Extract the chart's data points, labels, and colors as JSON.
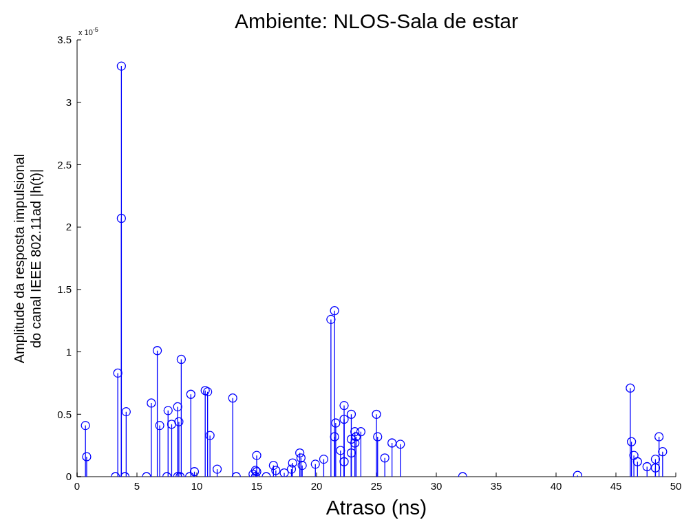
{
  "chart_data": {
    "type": "lollipop",
    "title": "Ambiente: NLOS-Sala de estar",
    "xlabel": "Atraso (ns)",
    "ylabel": "Amplitude da resposta impulsional\ndo canal IEEE 802.11ad |h(t)|",
    "annotations": [
      "x 10$^{-5}$"
    ],
    "color": "#0000ff",
    "marker": "circle",
    "x": [
      0.7,
      0.8,
      3.2,
      3.4,
      3.7,
      3.7,
      4.0,
      4.1,
      5.8,
      6.2,
      6.7,
      6.9,
      7.5,
      7.6,
      7.9,
      8.4,
      8.4,
      8.5,
      8.6,
      8.7,
      9.4,
      9.5,
      9.8,
      10.7,
      10.9,
      11.1,
      11.7,
      13.0,
      13.3,
      14.7,
      14.9,
      14.9,
      15.0,
      15.0,
      15.8,
      16.4,
      16.6,
      17.3,
      17.9,
      18.0,
      18.6,
      18.7,
      18.8,
      19.9,
      20.6,
      21.2,
      21.5,
      21.5,
      21.6,
      22.0,
      22.3,
      22.3,
      22.3,
      22.9,
      22.9,
      22.9,
      23.2,
      23.2,
      23.3,
      23.7,
      25.0,
      25.1,
      25.7,
      26.3,
      27.0,
      32.2,
      41.8,
      46.2,
      46.3,
      46.5,
      46.8,
      47.6,
      48.3,
      48.3,
      48.6,
      48.9
    ],
    "values": [
      0.41,
      0.16,
      0,
      0.83,
      3.29,
      2.07,
      0,
      0.52,
      0,
      0.59,
      1.01,
      0.41,
      0,
      0.53,
      0.42,
      0,
      0.56,
      0.44,
      0,
      0.94,
      0,
      0.66,
      0.04,
      0.69,
      0.68,
      0.33,
      0.06,
      0.63,
      0,
      0.02,
      0.05,
      0,
      0.17,
      0.04,
      0,
      0.09,
      0.05,
      0.03,
      0.06,
      0.11,
      0.19,
      0.15,
      0.09,
      0.1,
      0.14,
      1.26,
      1.33,
      0.32,
      0.43,
      0.21,
      0.57,
      0.12,
      0.46,
      0.5,
      0.3,
      0.19,
      0.27,
      0.36,
      0.32,
      0.36,
      0.5,
      0.32,
      0.15,
      0.27,
      0.26,
      0,
      0.01,
      0.71,
      0.28,
      0.17,
      0.12,
      0.08,
      0.14,
      0.07,
      0.32,
      0.2
    ],
    "xlim": [
      0,
      50
    ],
    "xticks": [
      0,
      5,
      10,
      15,
      20,
      25,
      30,
      35,
      40,
      45,
      50
    ],
    "ylim": [
      0,
      3.5
    ],
    "yticks": [
      0,
      0.5,
      1,
      1.5,
      2,
      2.5,
      3,
      3.5
    ]
  }
}
